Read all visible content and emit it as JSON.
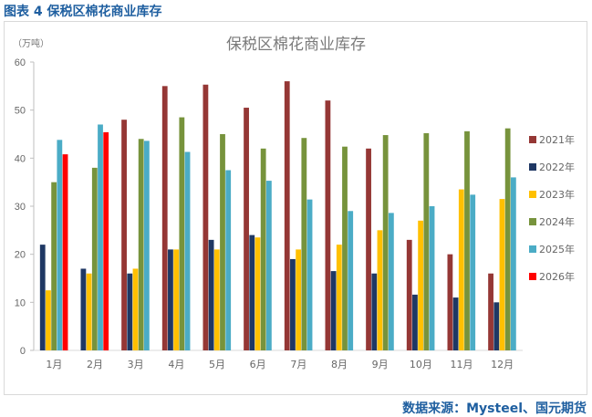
{
  "figure": {
    "label": "图表 4  保税区棉花商业库存",
    "source": "数据来源：Mysteel、国元期货"
  },
  "colors": {
    "2021年": "#953735",
    "2022年": "#1f3864",
    "2023年": "#ffc000",
    "2024年": "#77933c",
    "2025年": "#4bacc6",
    "2026年": "#ff0000"
  },
  "chart_data": {
    "type": "bar",
    "title": "保税区棉花商业库存",
    "ylabel": "（万吨）",
    "xlabel": "",
    "ylim": [
      0,
      60
    ],
    "yticks": [
      0,
      10,
      20,
      30,
      40,
      50,
      60
    ],
    "grid": false,
    "legend_position": "right",
    "categories": [
      "1月",
      "2月",
      "3月",
      "4月",
      "5月",
      "6月",
      "7月",
      "8月",
      "9月",
      "10月",
      "11月",
      "12月"
    ],
    "series": [
      {
        "name": "2021年",
        "values": [
          null,
          null,
          48,
          55,
          55.3,
          50.5,
          56,
          52,
          42,
          23,
          20,
          16
        ]
      },
      {
        "name": "2022年",
        "values": [
          22,
          17,
          16,
          21,
          23,
          24,
          19,
          16.5,
          16,
          11.6,
          11,
          10
        ]
      },
      {
        "name": "2023年",
        "values": [
          12.5,
          16,
          17,
          21,
          21,
          23.5,
          21,
          22,
          25,
          27,
          33.5,
          31.5
        ]
      },
      {
        "name": "2024年",
        "values": [
          35,
          38,
          44,
          48.5,
          45,
          42,
          44.2,
          42.4,
          44.8,
          45.2,
          45.6,
          46.2
        ]
      },
      {
        "name": "2025年",
        "values": [
          43.8,
          47,
          43.6,
          41.3,
          37.5,
          35.3,
          31.4,
          29,
          28.6,
          30,
          32.4,
          36
        ]
      },
      {
        "name": "2026年",
        "values": [
          40.8,
          45.4,
          null,
          null,
          null,
          null,
          null,
          null,
          null,
          null,
          null,
          null
        ]
      }
    ]
  }
}
